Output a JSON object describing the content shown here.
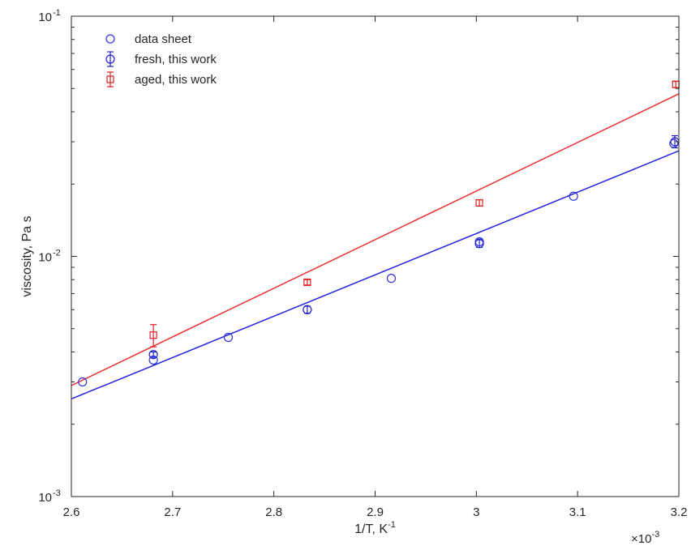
{
  "chart_data": {
    "type": "scatter",
    "xlabel": "1/T, K",
    "xlabel_exponent": "-1",
    "ylabel": "viscosity, Pa s",
    "xlim": [
      0.0026,
      0.0032
    ],
    "ylim": [
      0.001,
      0.1
    ],
    "x_scale": "linear",
    "y_scale": "log",
    "x_multiplier_prefix": "×10",
    "x_multiplier_exponent": "-3",
    "x_ticks": [
      {
        "value": 0.0026,
        "label": "2.6"
      },
      {
        "value": 0.0027,
        "label": "2.7"
      },
      {
        "value": 0.0028,
        "label": "2.8"
      },
      {
        "value": 0.0029,
        "label": "2.9"
      },
      {
        "value": 0.003,
        "label": "3"
      },
      {
        "value": 0.0031,
        "label": "3.1"
      },
      {
        "value": 0.0032,
        "label": "3.2"
      }
    ],
    "y_ticks": [
      {
        "value": 0.001,
        "base": "10",
        "exp": "-3"
      },
      {
        "value": 0.01,
        "base": "10",
        "exp": "-2"
      },
      {
        "value": 0.1,
        "base": "10",
        "exp": "-1"
      }
    ],
    "grid": false,
    "legend_position": "top-left",
    "series": [
      {
        "name": "data sheet",
        "marker": "circle",
        "color": "#3333dd",
        "error_bars": false,
        "points": [
          {
            "x": 0.002611,
            "y": 0.003
          },
          {
            "x": 0.002681,
            "y": 0.0037
          },
          {
            "x": 0.002755,
            "y": 0.0046
          },
          {
            "x": 0.002833,
            "y": 0.006
          },
          {
            "x": 0.002916,
            "y": 0.0081
          },
          {
            "x": 0.003003,
            "y": 0.0115
          },
          {
            "x": 0.003096,
            "y": 0.0178
          },
          {
            "x": 0.003195,
            "y": 0.0295
          }
        ]
      },
      {
        "name": "fresh, this work",
        "marker": "circle",
        "color": "#2222cc",
        "error_bars": true,
        "points": [
          {
            "x": 0.002681,
            "y": 0.0039,
            "low": 0.0038,
            "high": 0.004
          },
          {
            "x": 0.002833,
            "y": 0.006,
            "low": 0.0058,
            "high": 0.0062
          },
          {
            "x": 0.003003,
            "y": 0.0113,
            "low": 0.0109,
            "high": 0.0118
          },
          {
            "x": 0.003196,
            "y": 0.03,
            "low": 0.0283,
            "high": 0.0318
          }
        ]
      },
      {
        "name": "aged, this work",
        "marker": "square",
        "color": "#e02020",
        "error_bars": true,
        "points": [
          {
            "x": 0.002681,
            "y": 0.0047,
            "low": 0.0042,
            "high": 0.0052
          },
          {
            "x": 0.002833,
            "y": 0.0078,
            "low": 0.0076,
            "high": 0.008
          },
          {
            "x": 0.003003,
            "y": 0.0167,
            "low": 0.0162,
            "high": 0.0172
          },
          {
            "x": 0.003197,
            "y": 0.052,
            "low": 0.0505,
            "high": 0.0535
          }
        ]
      }
    ],
    "fit_lines": [
      {
        "color": "#2222dd",
        "x": [
          0.0026,
          0.0032
        ],
        "y": [
          0.00255,
          0.0275
        ]
      },
      {
        "color": "#e83030",
        "x": [
          0.0026,
          0.0032
        ],
        "y": [
          0.0029,
          0.0475
        ]
      }
    ]
  }
}
